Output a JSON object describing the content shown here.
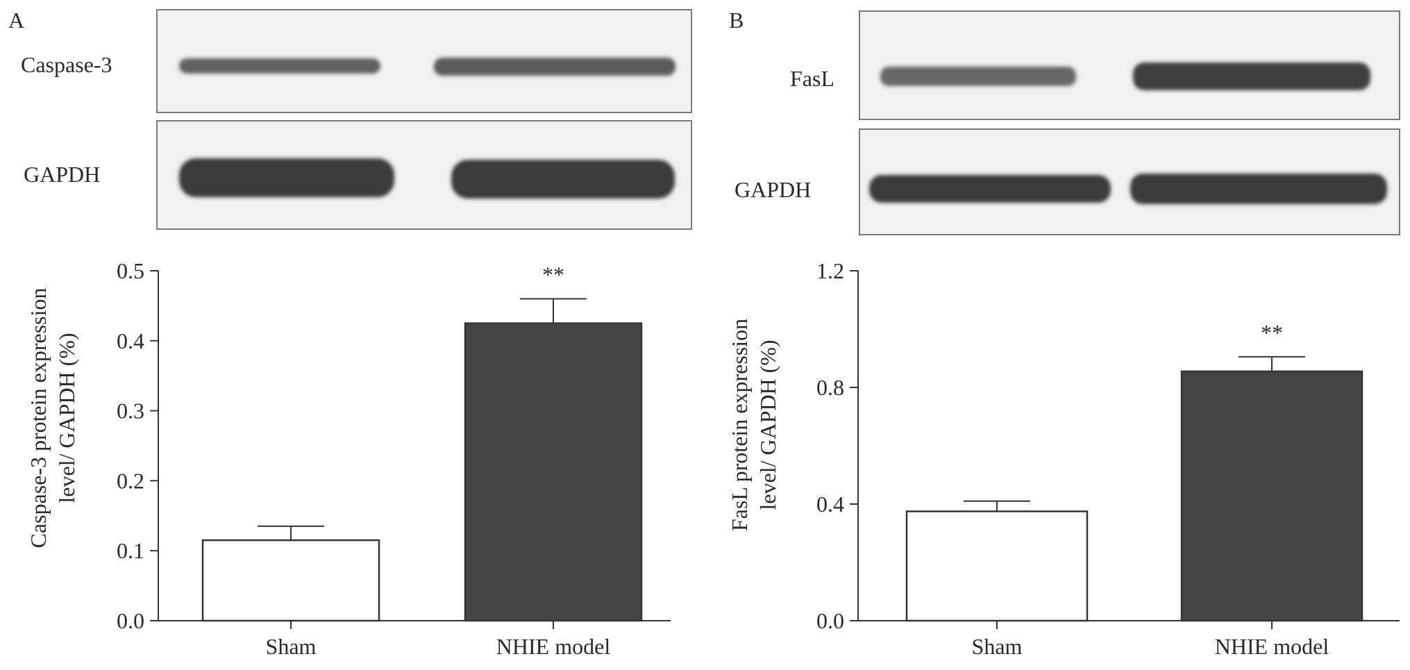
{
  "panels": [
    {
      "letter": "A",
      "blots": [
        {
          "label": "Caspase-3",
          "intensity": [
            0.78,
            0.82
          ]
        },
        {
          "label": "GAPDH",
          "intensity": [
            1.0,
            1.0
          ]
        }
      ]
    },
    {
      "letter": "B",
      "blots": [
        {
          "label": "FasL",
          "intensity": [
            0.75,
            0.98
          ]
        },
        {
          "label": "GAPDH",
          "intensity": [
            1.0,
            1.0
          ]
        }
      ]
    }
  ],
  "colors": {
    "sham_bar": "#ffffff",
    "model_bar": "#464646",
    "axis": "#333333",
    "blot_bg": "#f1f1f1",
    "band": "#3a3a3a"
  },
  "chart_data": [
    {
      "type": "bar",
      "categories": [
        "Sham",
        "NHIE model"
      ],
      "values": [
        0.115,
        0.425
      ],
      "errors": [
        0.02,
        0.035
      ],
      "significance": [
        "",
        "**"
      ],
      "ylabel": [
        "Caspase-3 protein expression",
        "level/ GAPDH (%)"
      ],
      "ylim": [
        0,
        0.5
      ],
      "yticks": [
        0.0,
        0.1,
        0.2,
        0.3,
        0.4,
        0.5
      ],
      "ytick_labels": [
        "0.0",
        "0.1",
        "0.2",
        "0.3",
        "0.4",
        "0.5"
      ],
      "grid": false
    },
    {
      "type": "bar",
      "categories": [
        "Sham",
        "NHIE model"
      ],
      "values": [
        0.375,
        0.855
      ],
      "errors": [
        0.035,
        0.05
      ],
      "significance": [
        "",
        "**"
      ],
      "ylabel": [
        "FasL protein expression",
        "level/ GAPDH (%)"
      ],
      "ylim": [
        0,
        1.2
      ],
      "yticks": [
        0.0,
        0.4,
        0.8,
        1.2
      ],
      "ytick_labels": [
        "0.0",
        "0.4",
        "0.8",
        "1.2"
      ],
      "grid": false
    }
  ]
}
